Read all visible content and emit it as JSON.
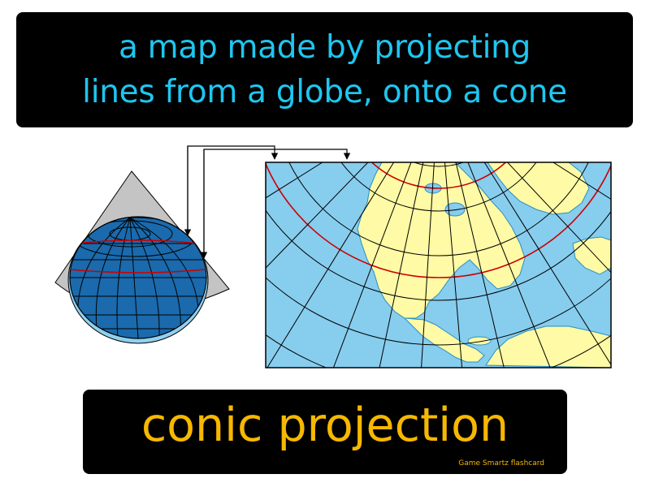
{
  "definition": {
    "lines": [
      "a map made by projecting",
      "lines from a globe, onto a cone"
    ]
  },
  "term": "conic projection",
  "brand": "Game Smartz flashcard",
  "illustration": {
    "icons": [
      "cone-icon",
      "globe-icon",
      "projection-arrow-icon",
      "conic-map-icon"
    ]
  },
  "colors": {
    "background": "#ffffff",
    "box": "#000000",
    "definition_text": "#1ec6f0",
    "term_text": "#f6b800",
    "ocean": "#87cdee",
    "land": "#fffaa5",
    "globe": "#1a6aad",
    "cone": "#c4c4c4",
    "standard_parallel": "#cc0000"
  }
}
